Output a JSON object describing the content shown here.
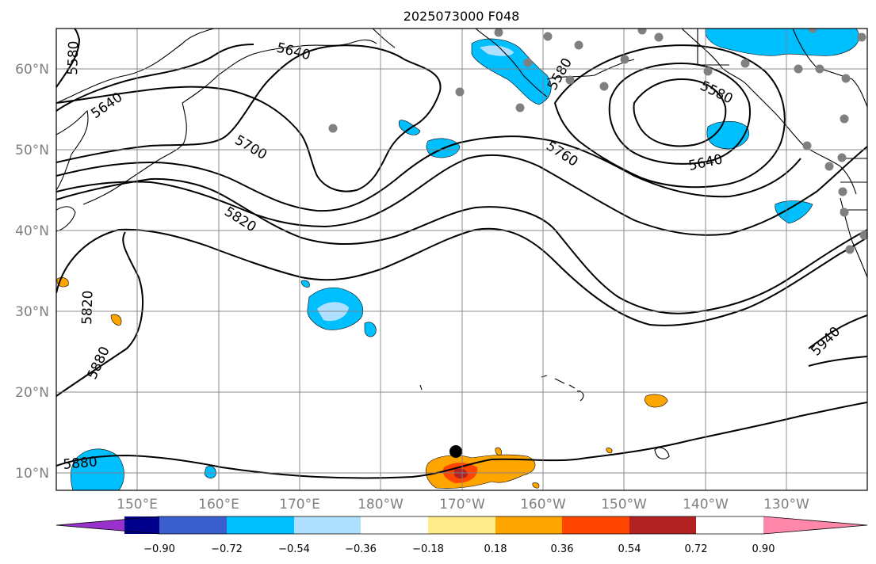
{
  "title": "2025073000 F048",
  "lat_labels": [
    "60°N",
    "50°N",
    "40°N",
    "30°N",
    "20°N",
    "10°N"
  ],
  "lon_labels": [
    "150°E",
    "160°E",
    "170°E",
    "180°W",
    "170°W",
    "160°W",
    "150°W",
    "140°W",
    "130°W"
  ],
  "contour_labels": [
    "5580",
    "5640",
    "5700",
    "5820",
    "5820",
    "5880",
    "5880",
    "5640",
    "5580",
    "5760",
    "5640",
    "5940",
    "5580"
  ],
  "colorbar": {
    "ticks": [
      "−0.90",
      "−0.72",
      "−0.54",
      "−0.36",
      "−0.18",
      "0.18",
      "0.36",
      "0.54",
      "0.72",
      "0.90"
    ],
    "colors": [
      "#9932cc",
      "#00008b",
      "#3a5fcd",
      "#00bfff",
      "#b0e0ff",
      "#ffffff",
      "#ffec8b",
      "#ffa500",
      "#ff4500",
      "#b22222",
      "#ff88aa"
    ]
  }
}
